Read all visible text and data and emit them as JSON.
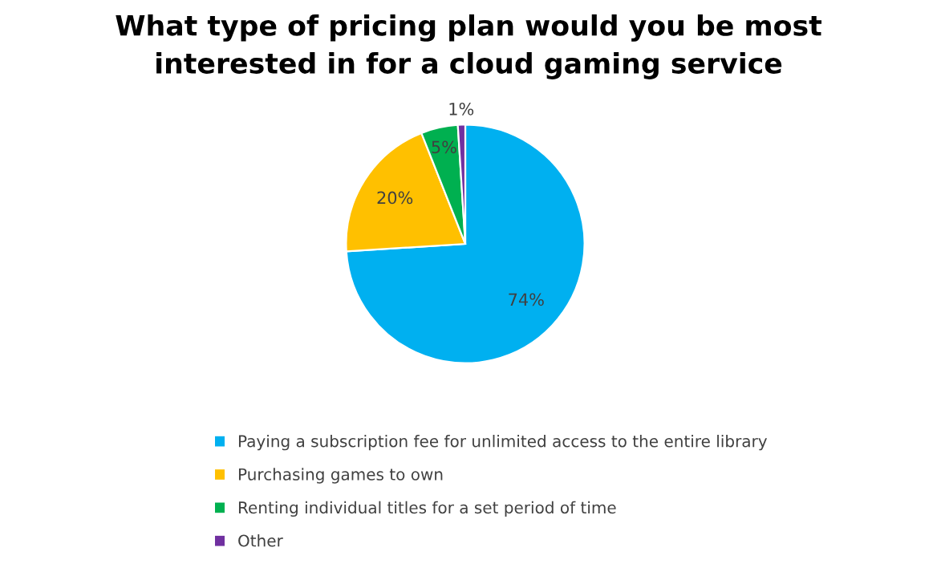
{
  "chart_data": {
    "type": "pie",
    "title": "What type of pricing plan would you be most\ninterested in for a cloud gaming service",
    "categories": [
      "Paying a subscription fee for unlimited access to the entire library",
      "Purchasing games to own",
      "Renting individual titles for a set period of time",
      "Other"
    ],
    "values": [
      74,
      20,
      5,
      1
    ],
    "colors": [
      "#00b0f0",
      "#ffc000",
      "#00b050",
      "#7030a0"
    ],
    "value_labels": [
      "74%",
      "20%",
      "5%",
      "1%"
    ],
    "legend": "bottom"
  }
}
